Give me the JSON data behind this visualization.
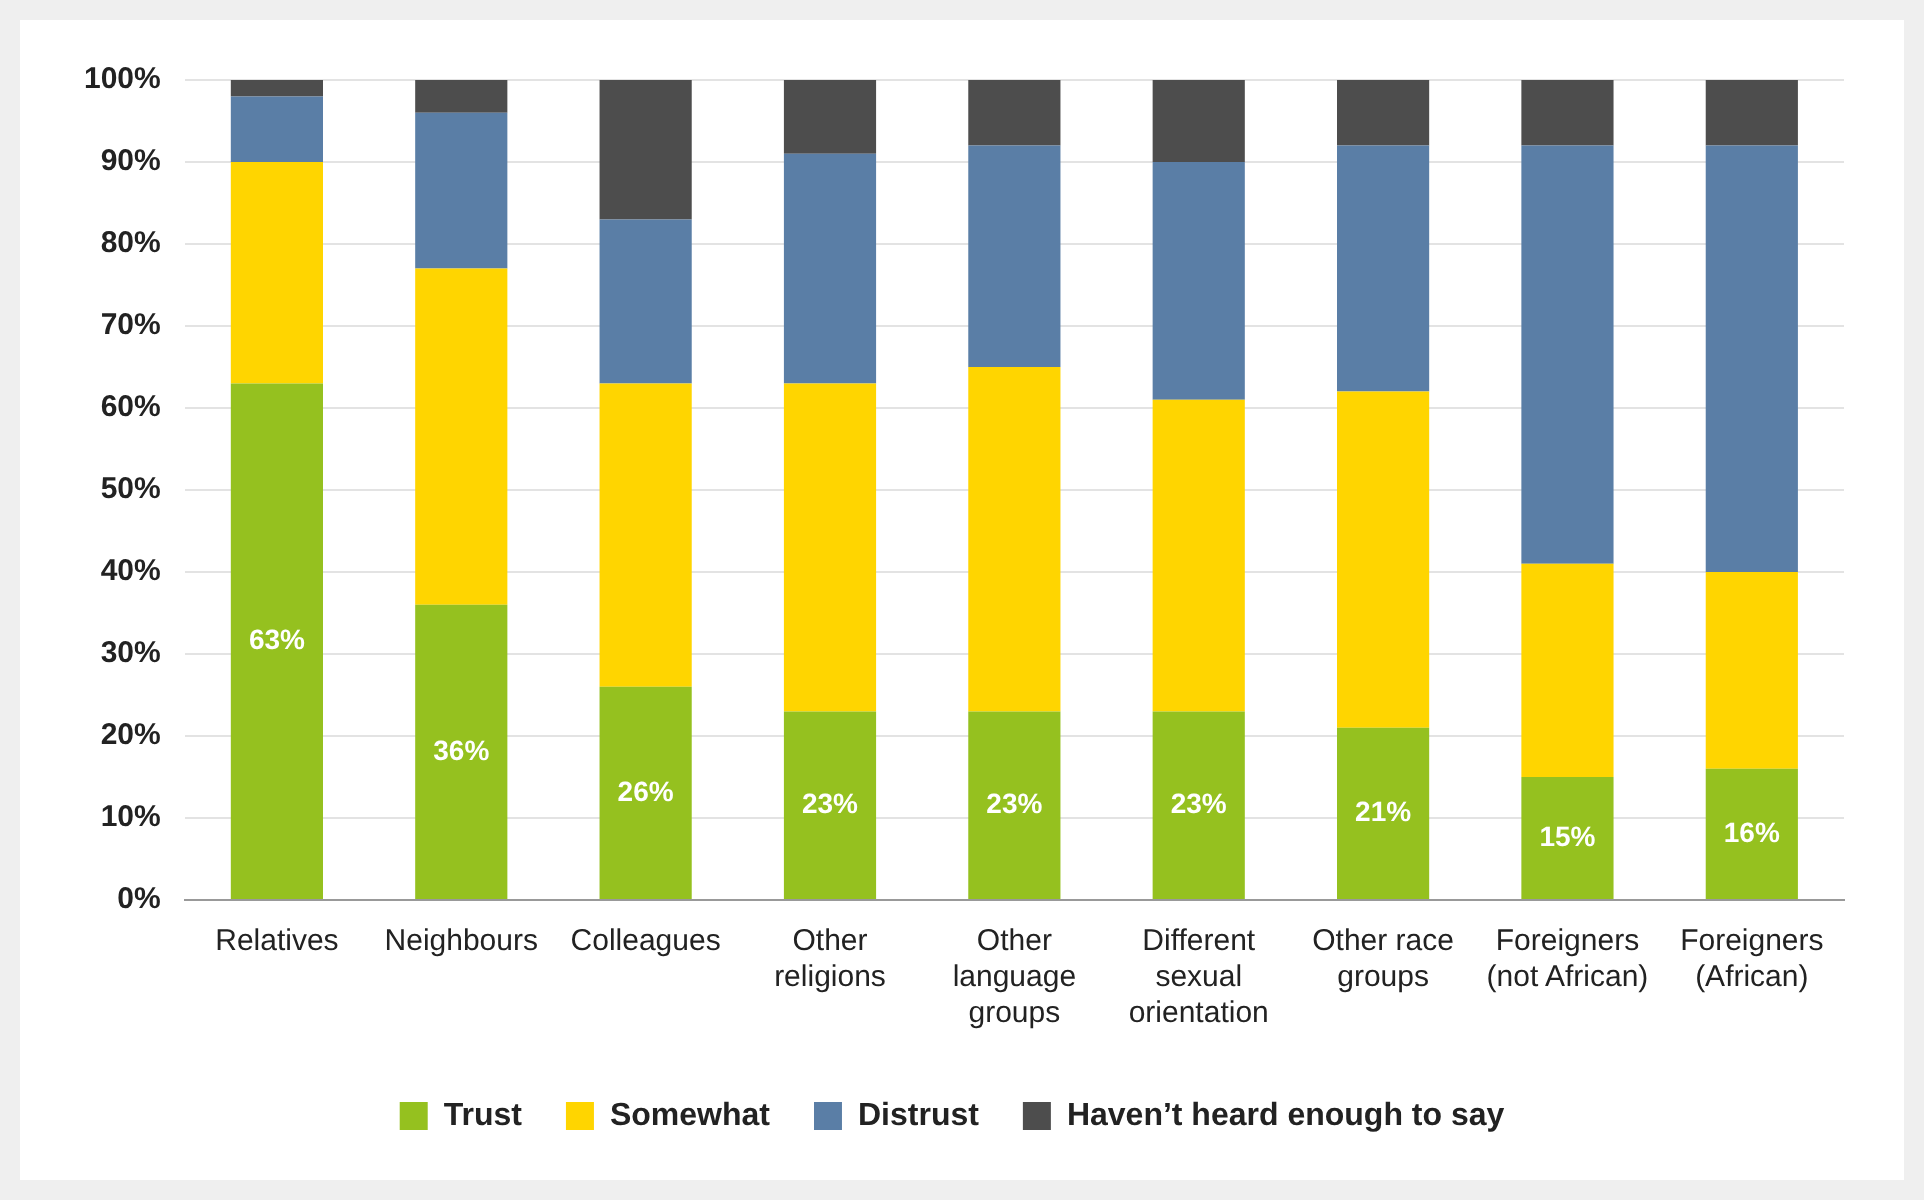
{
  "chart_data": {
    "type": "bar",
    "stacked": true,
    "categories": [
      "Relatives",
      "Neighbours",
      "Colleagues",
      "Other religions",
      "Other language groups",
      "Different sexual orientation",
      "Other race groups",
      "Foreigners (not African)",
      "Foreigners (African)"
    ],
    "series": [
      {
        "name": "Trust",
        "color": "#95c11f",
        "values": [
          63,
          36,
          26,
          23,
          23,
          23,
          21,
          15,
          16
        ],
        "value_labels": [
          "63%",
          "36%",
          "26%",
          "23%",
          "23%",
          "23%",
          "21%",
          "15%",
          "16%"
        ]
      },
      {
        "name": "Somewhat",
        "color": "#ffd500",
        "values": [
          27,
          41,
          37,
          40,
          42,
          38,
          41,
          26,
          24
        ]
      },
      {
        "name": "Distrust",
        "color": "#5a7ea6",
        "values": [
          8,
          19,
          20,
          28,
          27,
          29,
          30,
          51,
          52
        ]
      },
      {
        "name": "Haven’t heard enough to say",
        "color": "#4d4d4d",
        "values": [
          2,
          4,
          17,
          9,
          8,
          10,
          8,
          8,
          8
        ]
      }
    ],
    "ylim": [
      0,
      100
    ],
    "yticks": [
      {
        "value": 0,
        "label": "0%"
      },
      {
        "value": 10,
        "label": "10%"
      },
      {
        "value": 20,
        "label": "20%"
      },
      {
        "value": 30,
        "label": "30%"
      },
      {
        "value": 40,
        "label": "40%"
      },
      {
        "value": 50,
        "label": "50%"
      },
      {
        "value": 60,
        "label": "60%"
      },
      {
        "value": 70,
        "label": "70%"
      },
      {
        "value": 80,
        "label": "80%"
      },
      {
        "value": 90,
        "label": "90%"
      },
      {
        "value": 100,
        "label": "100%"
      }
    ],
    "grid": "y",
    "legend": "bottom"
  }
}
